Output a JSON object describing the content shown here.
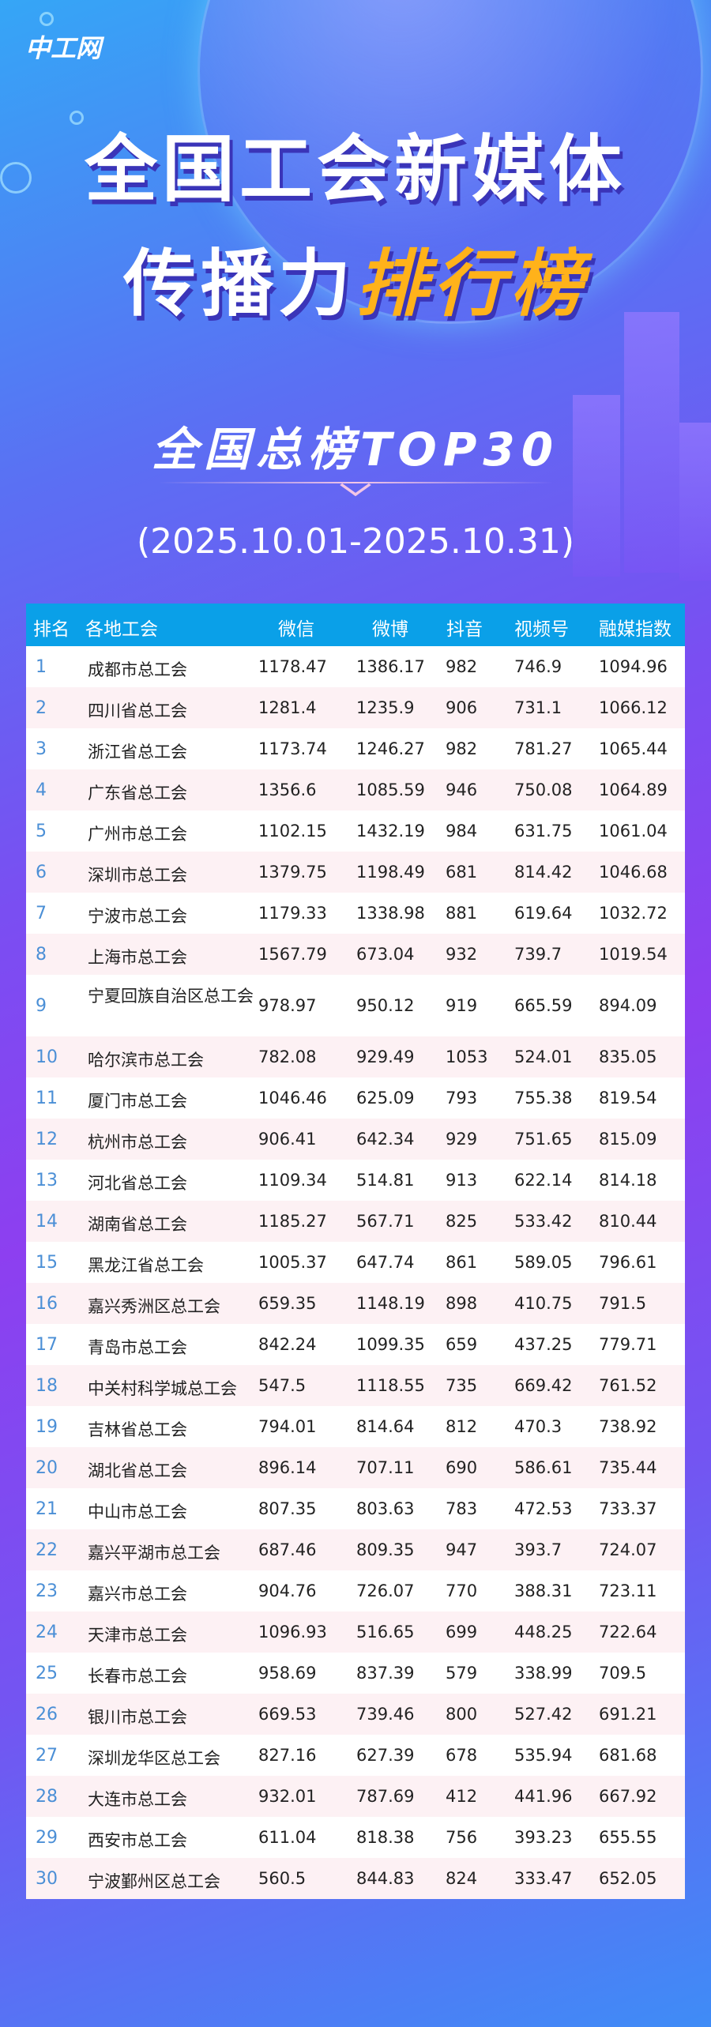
{
  "brand": {
    "logo_text": "中工网"
  },
  "header": {
    "title_line1": "全国工会新媒体",
    "title_line2_plain": "传播力",
    "title_line2_highlight": "排行榜",
    "subtitle": "全国总榜TOP30",
    "date_range": "(2025.10.01-2025.10.31)"
  },
  "colors": {
    "table_header": "#0aa0e8",
    "highlight": "#ffb21a",
    "rank": "#4b8fd6",
    "alt_row": "#fdf1f4"
  },
  "table": {
    "columns": [
      "排名",
      "各地工会",
      "微信",
      "微博",
      "抖音",
      "视频号",
      "融媒指数"
    ],
    "rows": [
      [
        "1",
        "成都市总工会",
        "1178.47",
        "1386.17",
        "982",
        "746.9",
        "1094.96"
      ],
      [
        "2",
        "四川省总工会",
        "1281.4",
        "1235.9",
        "906",
        "731.1",
        "1066.12"
      ],
      [
        "3",
        "浙江省总工会",
        "1173.74",
        "1246.27",
        "982",
        "781.27",
        "1065.44"
      ],
      [
        "4",
        "广东省总工会",
        "1356.6",
        "1085.59",
        "946",
        "750.08",
        "1064.89"
      ],
      [
        "5",
        "广州市总工会",
        "1102.15",
        "1432.19",
        "984",
        "631.75",
        "1061.04"
      ],
      [
        "6",
        "深圳市总工会",
        "1379.75",
        "1198.49",
        "681",
        "814.42",
        "1046.68"
      ],
      [
        "7",
        "宁波市总工会",
        "1179.33",
        "1338.98",
        "881",
        "619.64",
        "1032.72"
      ],
      [
        "8",
        "上海市总工会",
        "1567.79",
        "673.04",
        "932",
        "739.7",
        "1019.54"
      ],
      [
        "9",
        "宁夏回族自治区总工会",
        "978.97",
        "950.12",
        "919",
        "665.59",
        "894.09"
      ],
      [
        "10",
        "哈尔滨市总工会",
        "782.08",
        "929.49",
        "1053",
        "524.01",
        "835.05"
      ],
      [
        "11",
        "厦门市总工会",
        "1046.46",
        "625.09",
        "793",
        "755.38",
        "819.54"
      ],
      [
        "12",
        "杭州市总工会",
        "906.41",
        "642.34",
        "929",
        "751.65",
        "815.09"
      ],
      [
        "13",
        "河北省总工会",
        "1109.34",
        "514.81",
        "913",
        "622.14",
        "814.18"
      ],
      [
        "14",
        "湖南省总工会",
        "1185.27",
        "567.71",
        "825",
        "533.42",
        "810.44"
      ],
      [
        "15",
        "黑龙江省总工会",
        "1005.37",
        "647.74",
        "861",
        "589.05",
        "796.61"
      ],
      [
        "16",
        "嘉兴秀洲区总工会",
        "659.35",
        "1148.19",
        "898",
        "410.75",
        "791.5"
      ],
      [
        "17",
        "青岛市总工会",
        "842.24",
        "1099.35",
        "659",
        "437.25",
        "779.71"
      ],
      [
        "18",
        "中关村科学城总工会",
        "547.5",
        "1118.55",
        "735",
        "669.42",
        "761.52"
      ],
      [
        "19",
        "吉林省总工会",
        "794.01",
        "814.64",
        "812",
        "470.3",
        "738.92"
      ],
      [
        "20",
        "湖北省总工会",
        "896.14",
        "707.11",
        "690",
        "586.61",
        "735.44"
      ],
      [
        "21",
        "中山市总工会",
        "807.35",
        "803.63",
        "783",
        "472.53",
        "733.37"
      ],
      [
        "22",
        "嘉兴平湖市总工会",
        "687.46",
        "809.35",
        "947",
        "393.7",
        "724.07"
      ],
      [
        "23",
        "嘉兴市总工会",
        "904.76",
        "726.07",
        "770",
        "388.31",
        "723.11"
      ],
      [
        "24",
        "天津市总工会",
        "1096.93",
        "516.65",
        "699",
        "448.25",
        "722.64"
      ],
      [
        "25",
        "长春市总工会",
        "958.69",
        "837.39",
        "579",
        "338.99",
        "709.5"
      ],
      [
        "26",
        "银川市总工会",
        "669.53",
        "739.46",
        "800",
        "527.42",
        "691.21"
      ],
      [
        "27",
        "深圳龙华区总工会",
        "827.16",
        "627.39",
        "678",
        "535.94",
        "681.68"
      ],
      [
        "28",
        "大连市总工会",
        "932.01",
        "787.69",
        "412",
        "441.96",
        "667.92"
      ],
      [
        "29",
        "西安市总工会",
        "611.04",
        "818.38",
        "756",
        "393.23",
        "655.55"
      ],
      [
        "30",
        "宁波鄞州区总工会",
        "560.5",
        "844.83",
        "824",
        "333.47",
        "652.05"
      ]
    ]
  }
}
